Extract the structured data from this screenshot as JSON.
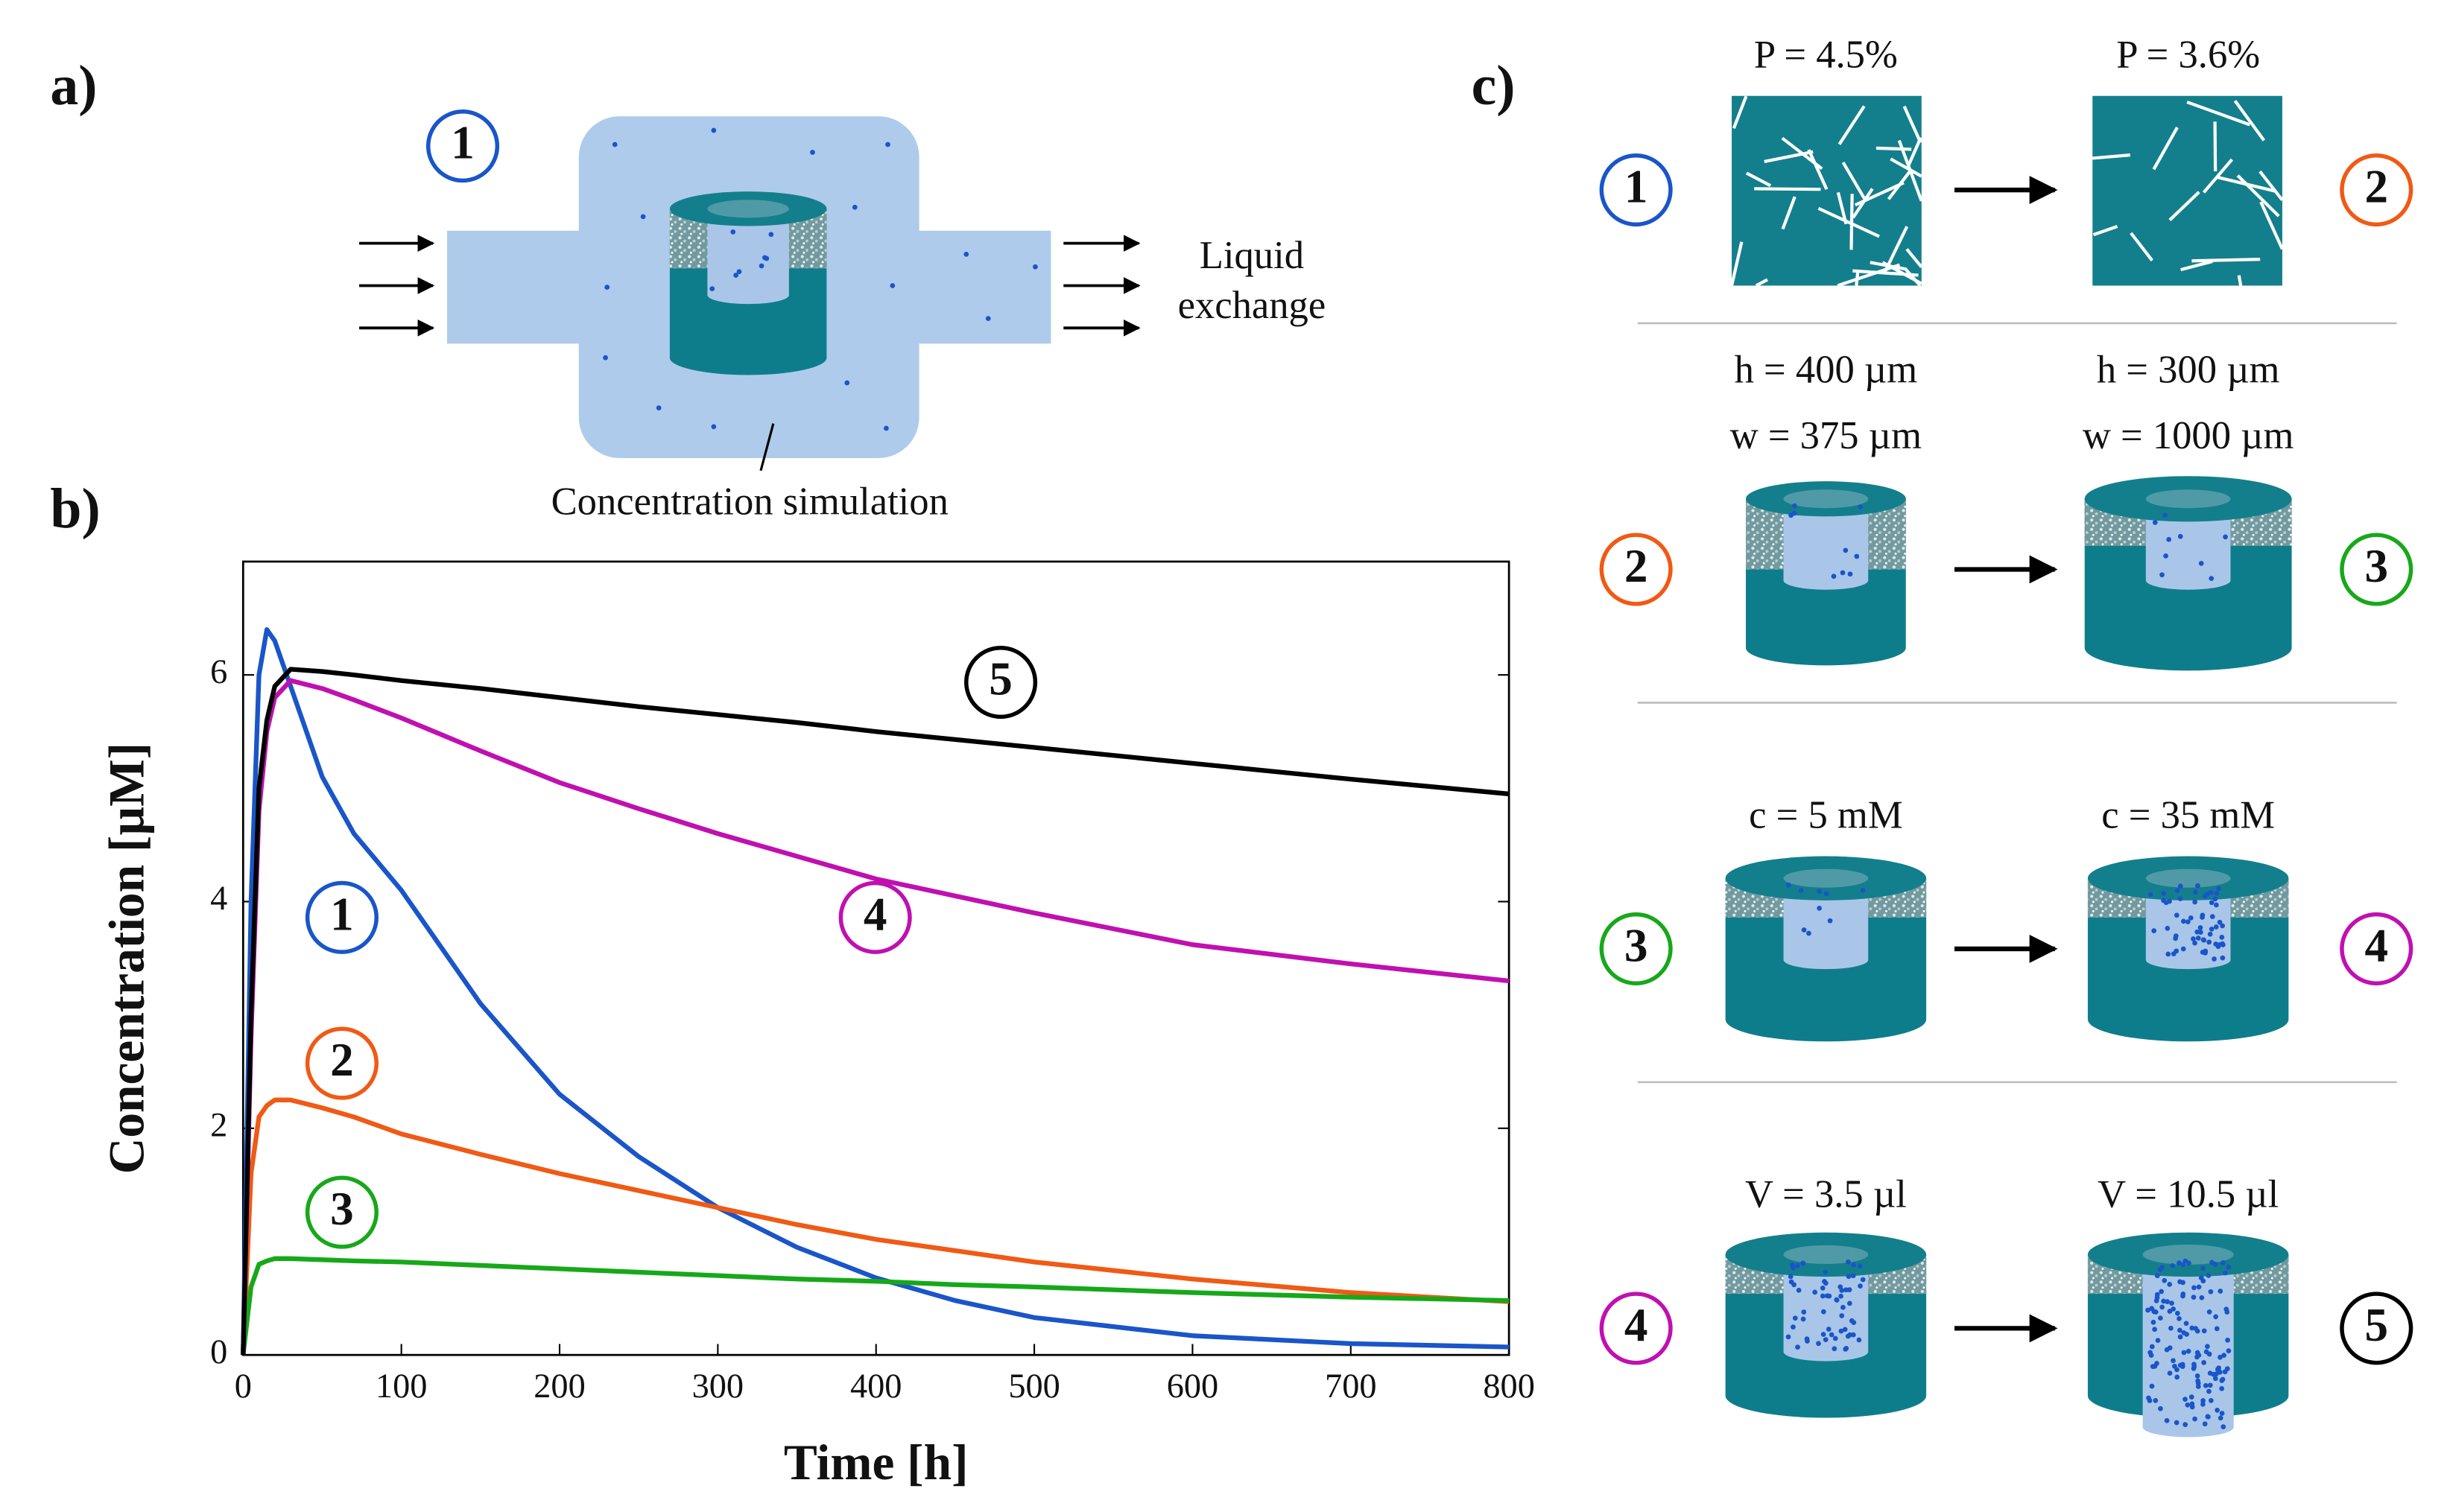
{
  "chart_data": {
    "type": "line",
    "xlabel": "Time [h]",
    "ylabel": "Concentration [µM]",
    "x": [
      0,
      5,
      10,
      15,
      20,
      30,
      50,
      70,
      100,
      150,
      200,
      250,
      300,
      350,
      400,
      450,
      500,
      600,
      700,
      800
    ],
    "series": [
      {
        "name": "1",
        "color": "#1a55c9",
        "values": [
          0,
          4.0,
          6.0,
          6.4,
          6.3,
          5.9,
          5.1,
          4.6,
          4.1,
          3.1,
          2.3,
          1.75,
          1.3,
          0.95,
          0.68,
          0.48,
          0.33,
          0.17,
          0.1,
          0.07
        ]
      },
      {
        "name": "2",
        "color": "#f05a14",
        "values": [
          0,
          1.6,
          2.1,
          2.2,
          2.25,
          2.25,
          2.18,
          2.1,
          1.95,
          1.77,
          1.6,
          1.45,
          1.3,
          1.15,
          1.02,
          0.92,
          0.82,
          0.67,
          0.55,
          0.47
        ]
      },
      {
        "name": "3",
        "color": "#17a81a",
        "values": [
          0,
          0.6,
          0.8,
          0.83,
          0.85,
          0.85,
          0.84,
          0.83,
          0.82,
          0.79,
          0.76,
          0.73,
          0.7,
          0.67,
          0.65,
          0.62,
          0.6,
          0.55,
          0.51,
          0.48
        ]
      },
      {
        "name": "4",
        "color": "#c010b0",
        "values": [
          0,
          2.8,
          4.8,
          5.5,
          5.8,
          5.95,
          5.88,
          5.78,
          5.62,
          5.33,
          5.05,
          4.82,
          4.6,
          4.4,
          4.2,
          4.05,
          3.9,
          3.62,
          3.45,
          3.3
        ]
      },
      {
        "name": "5",
        "color": "#000000",
        "values": [
          0,
          3.0,
          5.0,
          5.6,
          5.9,
          6.05,
          6.03,
          6.0,
          5.95,
          5.88,
          5.8,
          5.72,
          5.65,
          5.58,
          5.5,
          5.43,
          5.36,
          5.22,
          5.08,
          4.95
        ]
      }
    ],
    "xlim": [
      0,
      800
    ],
    "xticks": [
      0,
      100,
      200,
      300,
      400,
      500,
      600,
      700,
      800
    ],
    "ylim": [
      0,
      7
    ],
    "yticks": [
      0,
      2,
      4,
      6
    ]
  },
  "panel_labels": [
    "a)",
    "b)",
    "c)"
  ],
  "panel_a": {
    "label": "1",
    "exchange": [
      "Liquid",
      "exchange"
    ],
    "caption": "Concentration simulation"
  },
  "panel_c": {
    "rows": [
      {
        "from": "1",
        "to": "2",
        "left": [
          "P = 4.5%"
        ],
        "right": [
          "P = 3.6%"
        ]
      },
      {
        "from": "2",
        "to": "3",
        "left": [
          "h = 400 µm",
          "w = 375 µm"
        ],
        "right": [
          "h = 300 µm",
          "w = 1000 µm"
        ]
      },
      {
        "from": "3",
        "to": "4",
        "left": [
          "c = 5 mM"
        ],
        "right": [
          "c = 35 mM"
        ]
      },
      {
        "from": "4",
        "to": "5",
        "left": [
          "V = 3.5 µl"
        ],
        "right": [
          "V = 10.5 µl"
        ]
      }
    ]
  }
}
